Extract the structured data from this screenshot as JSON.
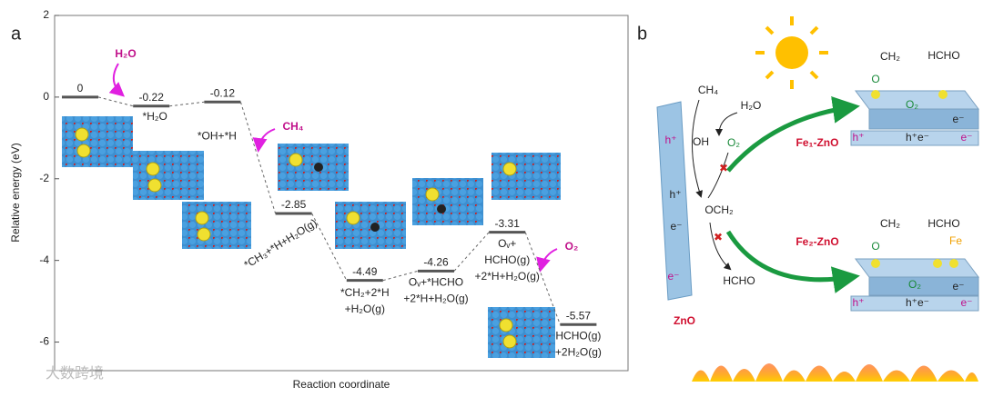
{
  "chart_data": {
    "type": "step",
    "panel": "a",
    "ylabel": "Relative energy (eV)",
    "xlabel": "Reaction coordinate",
    "values": [
      0,
      -0.22,
      -0.12,
      -2.85,
      -4.49,
      -4.26,
      -3.31,
      -5.57
    ],
    "labels": [
      null,
      [
        "*H₂O"
      ],
      [
        "*OH+*H"
      ],
      [
        "*CH₃+*H+H₂O(g)"
      ],
      [
        "*CH₂+2*H",
        "+H₂O(g)"
      ],
      [
        "Oᵥ+*HCHO",
        "+2*H+H₂O(g)"
      ],
      [
        "Oᵥ+",
        "HCHO(g)",
        "+2*H+H₂O(g)"
      ],
      [
        "HCHO(g)",
        "+2H₂O(g)"
      ]
    ],
    "annotations": [
      "H₂O",
      "CH₄",
      "O₂"
    ],
    "color": "#555555",
    "annotation_color": "#e020e0",
    "ylim": [
      -6.7,
      2
    ],
    "yticks": [
      2,
      0,
      -2,
      -4,
      -6
    ]
  },
  "diagram": {
    "panel": "b",
    "slab": {
      "label": "ZnO",
      "top": "h⁺",
      "mid_h": "h⁺",
      "mid_e": "e⁻",
      "bottom": "e⁻"
    },
    "species": {
      "ch4": "CH₄",
      "h2o": "H₂O",
      "oh": "OH",
      "o2": "O₂",
      "och2": "OCH₂",
      "hcho": "HCHO"
    },
    "fe1": {
      "label": "Fe₁-ZnO",
      "ch2": "CH₂",
      "hcho": "HCHO",
      "o": "O",
      "o2": "O₂",
      "e": "e⁻",
      "h": "h⁺",
      "he": "h⁺e⁻",
      "e2": "e⁻"
    },
    "fe2": {
      "label": "Fe₂-ZnO",
      "ch2": "CH₂",
      "hcho": "HCHO",
      "o": "O",
      "fe": "Fe",
      "o2": "O₂",
      "e": "e⁻",
      "h": "h⁺",
      "he": "h⁺e⁻",
      "e2": "e⁻"
    },
    "watermark": "大数跨境"
  }
}
